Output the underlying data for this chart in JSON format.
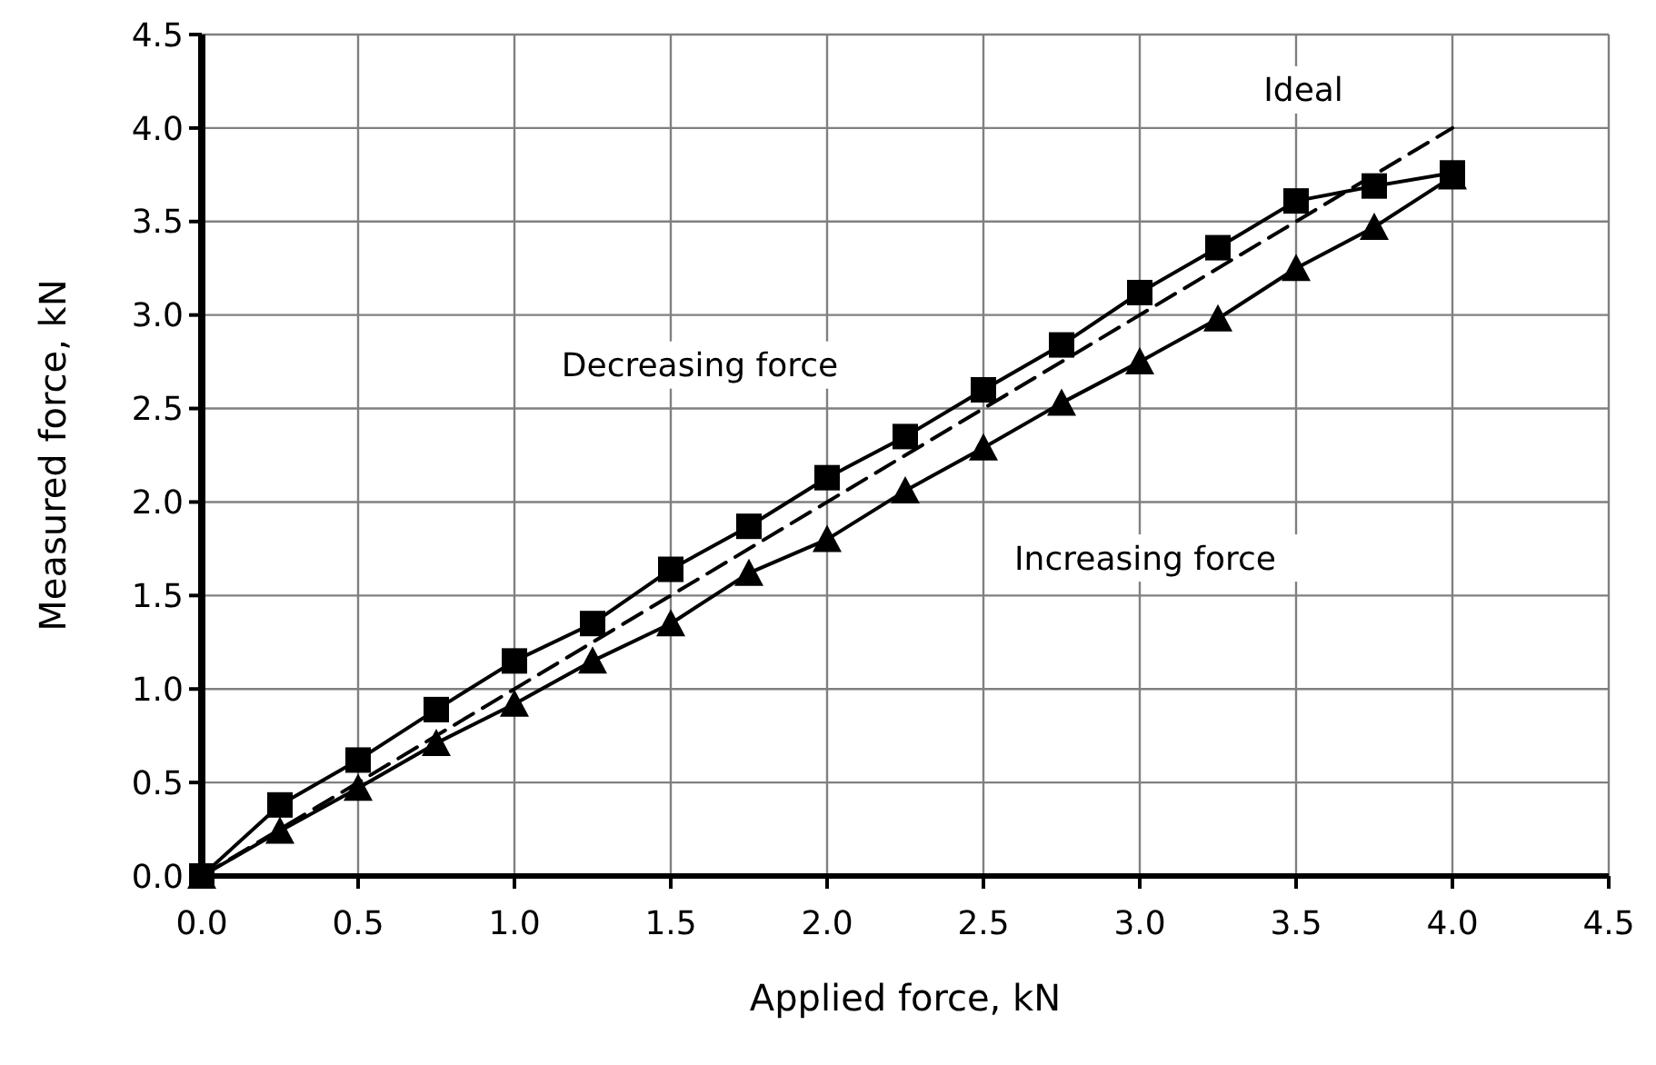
{
  "chart_data": {
    "type": "line",
    "xlabel": "Applied force, kN",
    "ylabel": "Measured force, kN",
    "xlim": [
      0,
      4.5
    ],
    "ylim": [
      0,
      4.5
    ],
    "xticks": [
      {
        "value": 0,
        "label": "0.0"
      },
      {
        "value": 0.5,
        "label": "0.5"
      },
      {
        "value": 1,
        "label": "1.0"
      },
      {
        "value": 1.5,
        "label": "1.5"
      },
      {
        "value": 2,
        "label": "2.0"
      },
      {
        "value": 2.5,
        "label": "2.5"
      },
      {
        "value": 3,
        "label": "3.0"
      },
      {
        "value": 3.5,
        "label": "3.5"
      },
      {
        "value": 4,
        "label": "4.0"
      },
      {
        "value": 4.5,
        "label": "4.5"
      }
    ],
    "yticks": [
      {
        "value": 0,
        "label": "0.0"
      },
      {
        "value": 0.5,
        "label": "0.5"
      },
      {
        "value": 1,
        "label": "1.0"
      },
      {
        "value": 1.5,
        "label": "1.5"
      },
      {
        "value": 2,
        "label": "2.0"
      },
      {
        "value": 2.5,
        "label": "2.5"
      },
      {
        "value": 3,
        "label": "3.0"
      },
      {
        "value": 3.5,
        "label": "3.5"
      },
      {
        "value": 4,
        "label": "4.0"
      },
      {
        "value": 4.5,
        "label": "4.5"
      }
    ],
    "grid": true,
    "series": [
      {
        "name": "Decreasing force",
        "color": "#000000",
        "marker": "square",
        "line_style": "solid",
        "x": [
          0,
          0.25,
          0.5,
          0.75,
          1,
          1.25,
          1.5,
          1.75,
          2,
          2.25,
          2.5,
          2.75,
          3,
          3.25,
          3.5,
          3.75,
          4
        ],
        "values": [
          0,
          0.38,
          0.62,
          0.89,
          1.15,
          1.35,
          1.64,
          1.87,
          2.13,
          2.35,
          2.6,
          2.84,
          3.12,
          3.36,
          3.61,
          3.69,
          3.76
        ]
      },
      {
        "name": "Increasing force",
        "color": "#000000",
        "marker": "triangle",
        "line_style": "solid",
        "x": [
          0,
          0.25,
          0.5,
          0.75,
          1,
          1.25,
          1.5,
          1.75,
          2,
          2.25,
          2.5,
          2.75,
          3,
          3.25,
          3.5,
          3.75,
          4
        ],
        "values": [
          0,
          0.24,
          0.47,
          0.71,
          0.92,
          1.15,
          1.35,
          1.62,
          1.8,
          2.06,
          2.29,
          2.53,
          2.75,
          2.98,
          3.25,
          3.47,
          3.74
        ]
      },
      {
        "name": "Ideal",
        "color": "#000000",
        "marker": "none",
        "line_style": "dashed",
        "x": [
          0,
          4
        ],
        "values": [
          0,
          4
        ]
      }
    ]
  }
}
